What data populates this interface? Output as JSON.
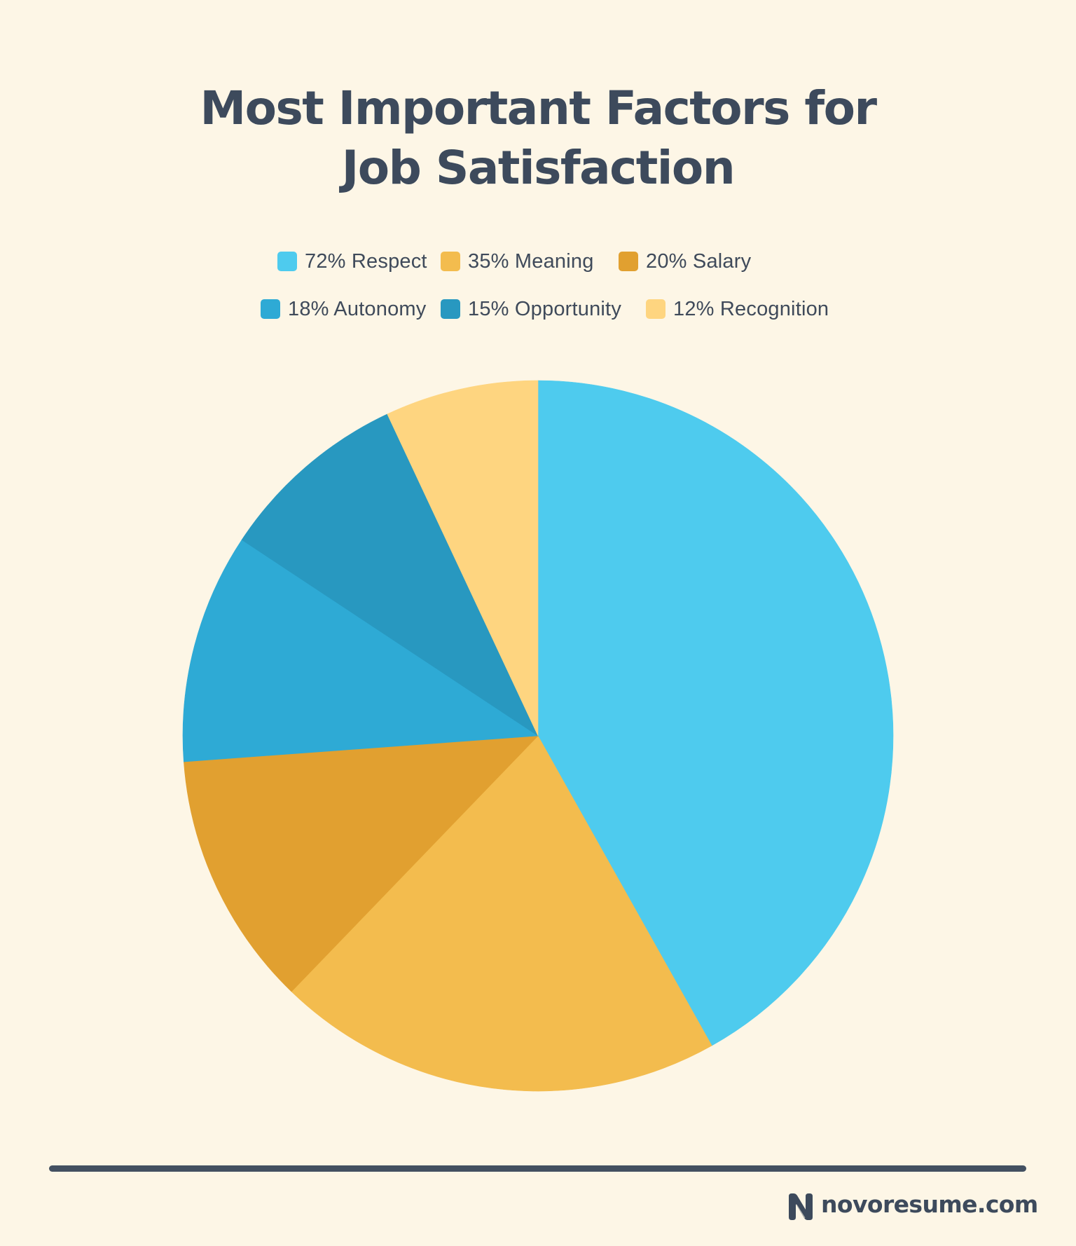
{
  "page": {
    "background": "#fdf6e6",
    "title_lines": [
      "Most Important Factors for",
      "Job Satisfaction"
    ],
    "text_color": "#3d4a5c"
  },
  "legend": {
    "rows": [
      [
        {
          "label": "72% Respect",
          "color": "#4ecbee"
        },
        {
          "label": "35% Meaning",
          "color": "#f3bc4e"
        },
        {
          "label": "20% Salary",
          "color": "#e1a030"
        }
      ],
      [
        {
          "label": "18% Autonomy",
          "color": "#2eaad5"
        },
        {
          "label": "15% Opportunity",
          "color": "#2898c0"
        },
        {
          "label": "12% Recognition",
          "color": "#fed580"
        }
      ]
    ]
  },
  "footer": {
    "brand": "novoresume.com",
    "logo_icon": "novoresume-n-logo-icon",
    "rule_color": "#435061"
  },
  "chart_data": {
    "type": "pie",
    "title": "Most Important Factors for Job Satisfaction",
    "categories": [
      "Respect",
      "Meaning",
      "Salary",
      "Autonomy",
      "Opportunity",
      "Recognition"
    ],
    "values": [
      72,
      35,
      20,
      18,
      15,
      12
    ],
    "unit": "%",
    "colors": [
      "#4ecbee",
      "#f3bc4e",
      "#e1a030",
      "#2eaad5",
      "#2898c0",
      "#fed580"
    ],
    "start_angle_deg": 0,
    "direction": "clockwise",
    "legend_position": "top",
    "center": [
      768,
      1050
    ],
    "radius": 507,
    "xlabel": "",
    "ylabel": ""
  }
}
